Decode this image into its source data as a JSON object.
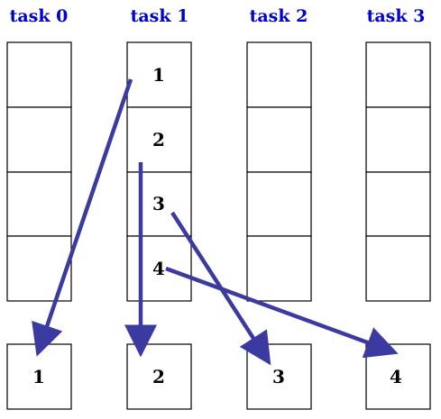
{
  "colors": {
    "label": "#0000CC",
    "arrow": "#3A3AA0",
    "border": "#000000"
  },
  "tasks": [
    {
      "label": "task 0",
      "source_cells": [
        "",
        "",
        "",
        ""
      ],
      "output": "1"
    },
    {
      "label": "task 1",
      "source_cells": [
        "1",
        "2",
        "3",
        "4"
      ],
      "output": "2"
    },
    {
      "label": "task 2",
      "source_cells": [
        "",
        "",
        "",
        ""
      ],
      "output": "3"
    },
    {
      "label": "task 3",
      "source_cells": [
        "",
        "",
        "",
        ""
      ],
      "output": "4"
    }
  ],
  "arrows": [
    {
      "from_task": 1,
      "from_cell": 0,
      "to_task": 0
    },
    {
      "from_task": 1,
      "from_cell": 1,
      "to_task": 1
    },
    {
      "from_task": 1,
      "from_cell": 2,
      "to_task": 2
    },
    {
      "from_task": 1,
      "from_cell": 3,
      "to_task": 3
    }
  ]
}
